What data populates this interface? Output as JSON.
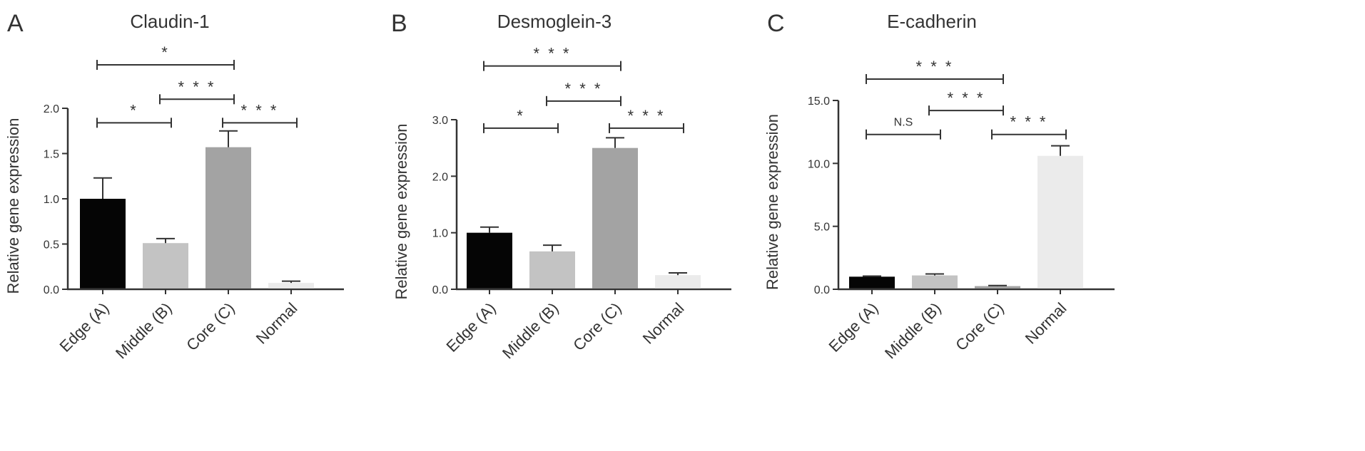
{
  "chart_data": [
    {
      "type": "bar",
      "panel": "A",
      "title": "Claudin-1",
      "ylabel": "Relative gene expression",
      "xlabel": "",
      "categories": [
        "Edge (A)",
        "Middle (B)",
        "Core (C)",
        "Normal"
      ],
      "values": [
        1.0,
        0.51,
        1.57,
        0.07
      ],
      "errors": [
        0.23,
        0.05,
        0.18,
        0.02
      ],
      "colors": [
        "#050505",
        "#c3c3c3",
        "#a3a3a3",
        "#ebebeb"
      ],
      "ylim": [
        0,
        2.0
      ],
      "yticks": [
        "0.0",
        "0.5",
        "1.0",
        "1.5",
        "2.0"
      ],
      "significance": [
        {
          "from": 0,
          "to": 1,
          "label": "*",
          "level": 1.84
        },
        {
          "from": 1,
          "to": 2,
          "label": "* * *",
          "level": 2.1
        },
        {
          "from": 2,
          "to": 3,
          "label": "* * *",
          "level": 1.84
        },
        {
          "from": 0,
          "to": 2,
          "label": "*",
          "level": 2.48
        }
      ]
    },
    {
      "type": "bar",
      "panel": "B",
      "title": "Desmoglein-3",
      "ylabel": "Relative gene expression",
      "xlabel": "",
      "categories": [
        "Edge (A)",
        "Middle (B)",
        "Core (C)",
        "Normal"
      ],
      "values": [
        1.0,
        0.67,
        2.5,
        0.25
      ],
      "errors": [
        0.1,
        0.11,
        0.18,
        0.04
      ],
      "colors": [
        "#050505",
        "#c3c3c3",
        "#a3a3a3",
        "#ebebeb"
      ],
      "ylim": [
        0,
        3.0
      ],
      "yticks": [
        "0.0",
        "1.0",
        "2.0",
        "3.0"
      ],
      "significance": [
        {
          "from": 0,
          "to": 1,
          "label": "*",
          "level": 2.85
        },
        {
          "from": 1,
          "to": 2,
          "label": "* * *",
          "level": 3.33
        },
        {
          "from": 2,
          "to": 3,
          "label": "* * *",
          "level": 2.85
        },
        {
          "from": 0,
          "to": 2,
          "label": "* * *",
          "level": 3.95
        }
      ]
    },
    {
      "type": "bar",
      "panel": "C",
      "title": "E-cadherin",
      "ylabel": "Relative gene expression",
      "xlabel": "",
      "categories": [
        "Edge (A)",
        "Middle (B)",
        "Core (C)",
        "Normal"
      ],
      "values": [
        1.0,
        1.1,
        0.25,
        10.6
      ],
      "errors": [
        0.05,
        0.12,
        0.05,
        0.8
      ],
      "colors": [
        "#050505",
        "#c3c3c3",
        "#a3a3a3",
        "#ebebeb"
      ],
      "ylim": [
        0,
        15.0
      ],
      "yticks": [
        "0.0",
        "5.0",
        "10.0",
        "15.0"
      ],
      "significance": [
        {
          "from": 0,
          "to": 1,
          "label": "N.S",
          "level": 12.3
        },
        {
          "from": 1,
          "to": 2,
          "label": "* * *",
          "level": 14.2
        },
        {
          "from": 2,
          "to": 3,
          "label": "* * *",
          "level": 12.3
        },
        {
          "from": 0,
          "to": 2,
          "label": "* * *",
          "level": 16.7
        }
      ]
    }
  ]
}
